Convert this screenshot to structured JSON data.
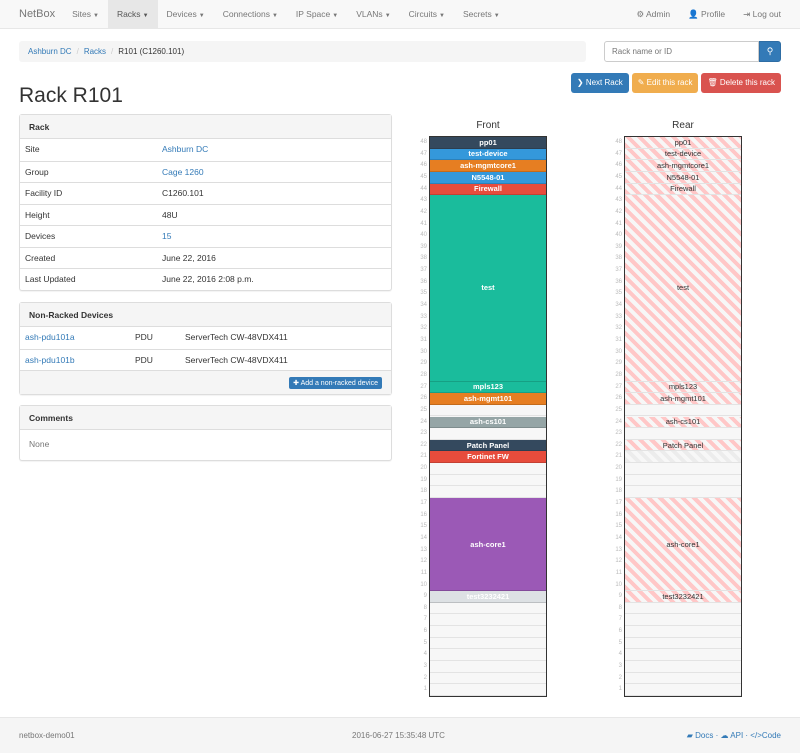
{
  "nav": {
    "brand": "NetBox",
    "items": [
      {
        "label": "Sites"
      },
      {
        "label": "Racks",
        "active": true
      },
      {
        "label": "Devices"
      },
      {
        "label": "Connections"
      },
      {
        "label": "IP Space"
      },
      {
        "label": "VLANs"
      },
      {
        "label": "Circuits"
      },
      {
        "label": "Secrets"
      }
    ],
    "right": [
      {
        "icon": "gear-icon",
        "glyph": "⚙",
        "label": "Admin"
      },
      {
        "icon": "user-icon",
        "glyph": "👤",
        "label": "Profile"
      },
      {
        "icon": "logout-icon",
        "glyph": "⇥",
        "label": "Log out"
      }
    ]
  },
  "breadcrumb": [
    "Ashburn DC",
    "Racks",
    "R101 (C1260.101)"
  ],
  "search": {
    "placeholder": "Rack name or ID",
    "icon": "search-icon"
  },
  "actions": {
    "next": "Next Rack",
    "edit": "Edit this rack",
    "delete": "Delete this rack"
  },
  "title": "Rack R101",
  "rack_panel": {
    "heading": "Rack",
    "rows": [
      {
        "k": "Site",
        "v": "Ashburn DC",
        "link": true
      },
      {
        "k": "Group",
        "v": "Cage 1260",
        "link": true
      },
      {
        "k": "Facility ID",
        "v": "C1260.101"
      },
      {
        "k": "Height",
        "v": "48U"
      },
      {
        "k": "Devices",
        "v": "15",
        "link": true
      },
      {
        "k": "Created",
        "v": "June 22, 2016"
      },
      {
        "k": "Last Updated",
        "v": "June 22, 2016 2:08 p.m."
      }
    ]
  },
  "nonracked": {
    "heading": "Non-Racked Devices",
    "rows": [
      [
        "ash-pdu101a",
        "PDU",
        "ServerTech CW-48VDX411"
      ],
      [
        "ash-pdu101b",
        "PDU",
        "ServerTech CW-48VDX411"
      ]
    ],
    "add": "Add a non-racked device"
  },
  "comments": {
    "heading": "Comments",
    "body": "None"
  },
  "elevation": {
    "front_label": "Front",
    "rear_label": "Rear",
    "units": 48,
    "devices": [
      {
        "name": "pp01",
        "top": 48,
        "height": 1,
        "color": "#34495e",
        "rear": "full"
      },
      {
        "name": "test-device",
        "top": 47,
        "height": 1,
        "color": "#3498db",
        "rear": "full"
      },
      {
        "name": "ash-mgmtcore1",
        "top": 46,
        "height": 1,
        "color": "#e67e22",
        "rear": "full"
      },
      {
        "name": "N5548-01",
        "top": 45,
        "height": 1,
        "color": "#3498db",
        "rear": "full"
      },
      {
        "name": "Firewall",
        "top": 44,
        "height": 1,
        "color": "#e74c3c",
        "rear": "full"
      },
      {
        "name": "test",
        "top": 43,
        "height": 16,
        "color": "#1abc9c",
        "rear": "full"
      },
      {
        "name": "mpls123",
        "top": 27,
        "height": 1,
        "color": "#1abc9c",
        "rear": "full"
      },
      {
        "name": "ash-mgmt101",
        "top": 26,
        "height": 1,
        "color": "#e67e22",
        "rear": "full"
      },
      {
        "name": "ash-cs101",
        "top": 24,
        "height": 1,
        "color": "#95a5a6",
        "rear": "full"
      },
      {
        "name": "Patch Panel",
        "top": 22,
        "height": 1,
        "color": "#34495e",
        "rear": "full"
      },
      {
        "name": "Fortinet FW",
        "top": 21,
        "height": 1,
        "color": "#e74c3c",
        "rear": "half"
      },
      {
        "name": "ash-core1",
        "top": 17,
        "height": 8,
        "color": "#9b59b6",
        "rear": "full"
      },
      {
        "name": "test3232421",
        "top": 9,
        "height": 1,
        "color": "#dde1e4",
        "rear": "full"
      }
    ]
  },
  "footer": {
    "host": "netbox-demo01",
    "time": "2016-06-27 15:35:48 UTC",
    "docs": "Docs",
    "api": "API",
    "code": "Code"
  }
}
